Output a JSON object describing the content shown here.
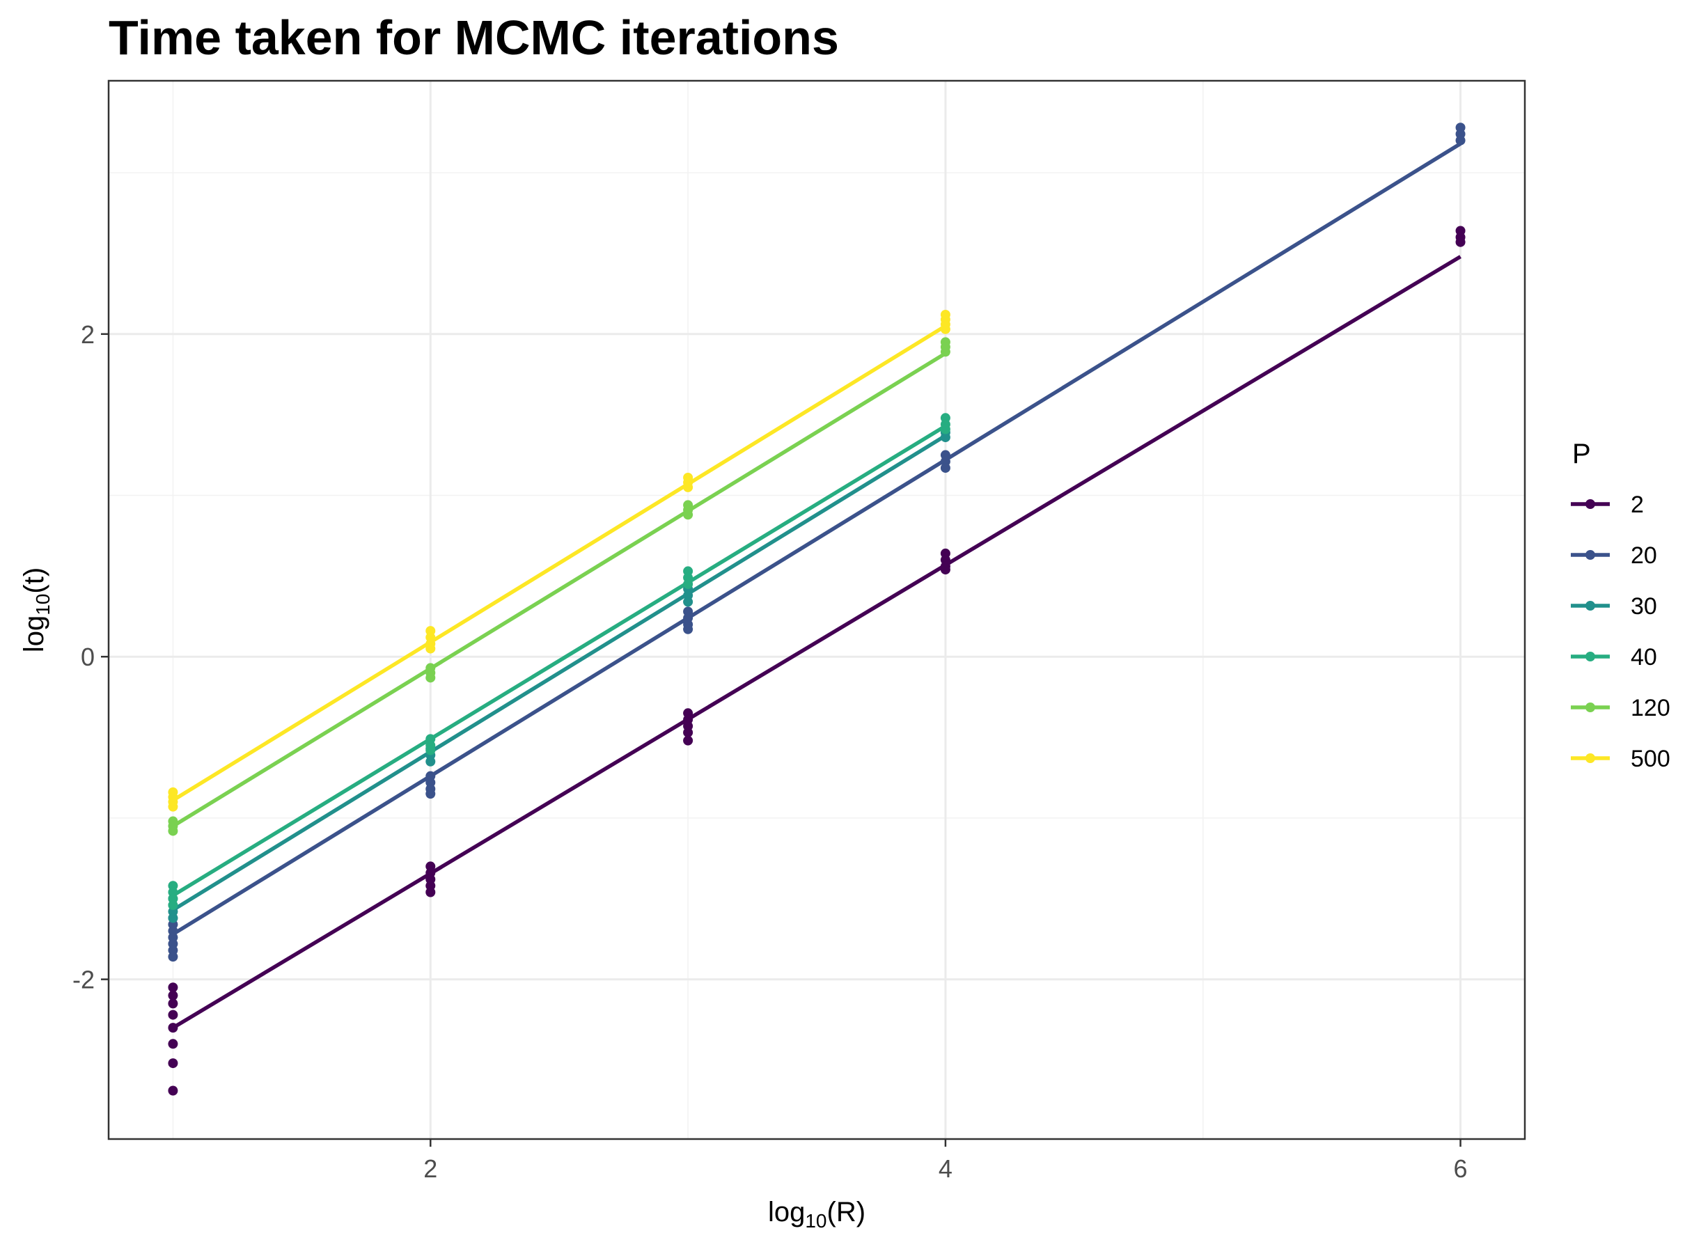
{
  "chart_data": {
    "type": "scatter",
    "title": "Time taken for MCMC iterations",
    "xlabel": {
      "base": "log",
      "sub": "10",
      "arg": "(R)"
    },
    "ylabel": {
      "base": "log",
      "sub": "10",
      "arg": "(t)"
    },
    "xlim": [
      0.75,
      6.25
    ],
    "ylim": [
      -2.99,
      3.57
    ],
    "x_ticks": [
      2,
      4,
      6
    ],
    "x_tick_labels": [
      "2",
      "4",
      "6"
    ],
    "y_ticks": [
      -2,
      0,
      2
    ],
    "y_tick_labels": [
      "-2",
      "0",
      "2"
    ],
    "x_minor_gridlines": [
      1,
      3,
      5
    ],
    "y_minor_gridlines": [
      -1,
      1,
      3
    ],
    "grid": true,
    "legend": {
      "title": "P",
      "position": "right"
    },
    "series": [
      {
        "name": "2",
        "color": "#440154",
        "fit": {
          "x": [
            1,
            6
          ],
          "y": [
            -2.3,
            2.48
          ]
        },
        "points": [
          {
            "x": 1,
            "y": [
              -2.05,
              -2.1,
              -2.15,
              -2.22,
              -2.3,
              -2.4,
              -2.52,
              -2.69
            ]
          },
          {
            "x": 2,
            "y": [
              -1.3,
              -1.34,
              -1.38,
              -1.42,
              -1.46
            ]
          },
          {
            "x": 3,
            "y": [
              -0.35,
              -0.39,
              -0.43,
              -0.47,
              -0.52
            ]
          },
          {
            "x": 4,
            "y": [
              0.64,
              0.6,
              0.56,
              0.54
            ]
          },
          {
            "x": 6,
            "y": [
              2.64,
              2.6,
              2.57
            ]
          }
        ]
      },
      {
        "name": "20",
        "color": "#3B528B",
        "fit": {
          "x": [
            1,
            6
          ],
          "y": [
            -1.72,
            3.18
          ]
        },
        "points": [
          {
            "x": 1,
            "y": [
              -1.62,
              -1.66,
              -1.7,
              -1.74,
              -1.78,
              -1.82,
              -1.86
            ]
          },
          {
            "x": 2,
            "y": [
              -0.74,
              -0.78,
              -0.82,
              -0.85
            ]
          },
          {
            "x": 3,
            "y": [
              0.28,
              0.24,
              0.2,
              0.17
            ]
          },
          {
            "x": 4,
            "y": [
              1.25,
              1.21,
              1.17
            ]
          },
          {
            "x": 6,
            "y": [
              3.28,
              3.24,
              3.2
            ]
          }
        ]
      },
      {
        "name": "30",
        "color": "#21908C",
        "fit": {
          "x": [
            1,
            4
          ],
          "y": [
            -1.57,
            1.37
          ]
        },
        "points": [
          {
            "x": 1,
            "y": [
              -1.5,
              -1.54,
              -1.58,
              -1.62
            ]
          },
          {
            "x": 2,
            "y": [
              -0.57,
              -0.61,
              -0.65
            ]
          },
          {
            "x": 3,
            "y": [
              0.42,
              0.38,
              0.34
            ]
          },
          {
            "x": 4,
            "y": [
              1.39,
              1.36
            ]
          }
        ]
      },
      {
        "name": "40",
        "color": "#27AD81",
        "fit": {
          "x": [
            1,
            4
          ],
          "y": [
            -1.48,
            1.43
          ]
        },
        "points": [
          {
            "x": 1,
            "y": [
              -1.42,
              -1.46,
              -1.5,
              -1.54
            ]
          },
          {
            "x": 2,
            "y": [
              -0.51,
              -0.55,
              -0.58
            ]
          },
          {
            "x": 3,
            "y": [
              0.53,
              0.49,
              0.45
            ]
          },
          {
            "x": 4,
            "y": [
              1.48,
              1.44,
              1.41
            ]
          }
        ]
      },
      {
        "name": "120",
        "color": "#7AD151",
        "fit": {
          "x": [
            1,
            4
          ],
          "y": [
            -1.05,
            1.88
          ]
        },
        "points": [
          {
            "x": 1,
            "y": [
              -1.02,
              -1.05,
              -1.08
            ]
          },
          {
            "x": 2,
            "y": [
              -0.07,
              -0.1,
              -0.13
            ]
          },
          {
            "x": 3,
            "y": [
              0.94,
              0.91,
              0.88
            ]
          },
          {
            "x": 4,
            "y": [
              1.95,
              1.92,
              1.89
            ]
          }
        ]
      },
      {
        "name": "500",
        "color": "#FDE725",
        "fit": {
          "x": [
            1,
            4
          ],
          "y": [
            -0.89,
            2.05
          ]
        },
        "points": [
          {
            "x": 1,
            "y": [
              -0.84,
              -0.87,
              -0.9,
              -0.93
            ]
          },
          {
            "x": 2,
            "y": [
              0.16,
              0.12,
              0.08,
              0.05
            ]
          },
          {
            "x": 3,
            "y": [
              1.11,
              1.08,
              1.05
            ]
          },
          {
            "x": 4,
            "y": [
              2.12,
              2.09,
              2.06,
              2.03
            ]
          }
        ]
      }
    ]
  }
}
